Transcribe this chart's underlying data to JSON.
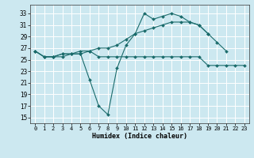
{
  "title": "",
  "xlabel": "Humidex (Indice chaleur)",
  "bg_color": "#cce8f0",
  "grid_color": "#ffffff",
  "line_color": "#1a6b6b",
  "xlim": [
    -0.5,
    23.5
  ],
  "ylim": [
    14,
    34.5
  ],
  "yticks": [
    15,
    17,
    19,
    21,
    23,
    25,
    27,
    29,
    31,
    33
  ],
  "xticks": [
    0,
    1,
    2,
    3,
    4,
    5,
    6,
    7,
    8,
    9,
    10,
    11,
    12,
    13,
    14,
    15,
    16,
    17,
    18,
    19,
    20,
    21,
    22,
    23
  ],
  "series": [
    [
      26.5,
      25.5,
      25.5,
      25.5,
      26.0,
      26.0,
      21.5,
      17.0,
      15.5,
      23.5,
      27.5,
      29.5,
      33.0,
      32.0,
      32.5,
      33.0,
      32.5,
      31.5,
      31.0,
      29.5,
      28.0,
      26.5,
      null,
      null
    ],
    [
      26.5,
      25.5,
      25.5,
      26.0,
      26.0,
      26.0,
      26.5,
      27.0,
      27.0,
      27.5,
      28.5,
      29.5,
      30.0,
      30.5,
      31.0,
      31.5,
      31.5,
      31.5,
      31.0,
      29.5,
      null,
      null,
      null,
      null
    ],
    [
      26.5,
      25.5,
      25.5,
      26.0,
      26.0,
      26.5,
      26.5,
      25.5,
      25.5,
      25.5,
      25.5,
      25.5,
      25.5,
      25.5,
      25.5,
      25.5,
      25.5,
      25.5,
      25.5,
      24.0,
      24.0,
      24.0,
      24.0,
      24.0
    ]
  ],
  "xlabel_fontsize": 6,
  "tick_fontsize": 5,
  "linewidth": 0.8,
  "markersize": 2.0
}
